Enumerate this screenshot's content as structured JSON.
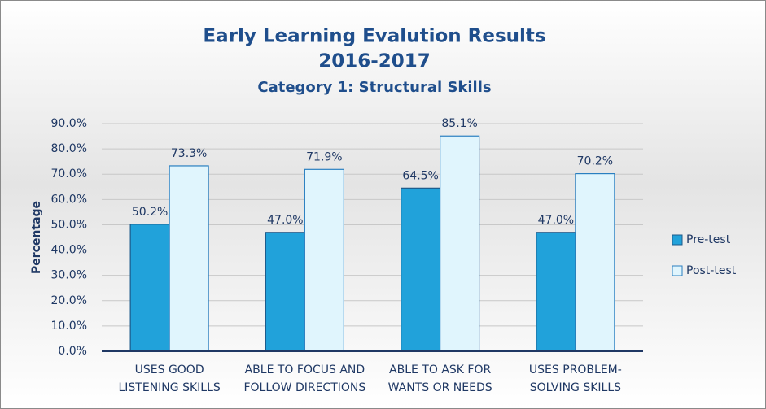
{
  "chart_data": {
    "type": "bar",
    "title": "Early Learning Evalution Results",
    "title_line2": "2016-2017",
    "subtitle": "Category 1: Structural Skills",
    "y_label": "Percentage",
    "categories": [
      "USES GOOD LISTENING SKILLS",
      "ABLE TO FOCUS AND FOLLOW DIRECTIONS",
      "ABLE TO ASK FOR WANTS OR NEEDS",
      "USES PROBLEM-SOLVING SKILLS"
    ],
    "series": [
      {
        "name": "Pre-test",
        "color": "#21a2da",
        "values": [
          50.2,
          47.0,
          64.5,
          47.0
        ],
        "value_labels": [
          "50.2%",
          "47.0%",
          "64.5%",
          "47.0%"
        ]
      },
      {
        "name": "Post-test",
        "color": "#e0f5fd",
        "values": [
          73.3,
          71.9,
          85.1,
          70.2
        ],
        "value_labels": [
          "73.3%",
          "71.9%",
          "85.1%",
          "70.2%"
        ]
      }
    ],
    "ylim": [
      0,
      90
    ],
    "yticks": [
      {
        "value": 0,
        "label": "0.0%"
      },
      {
        "value": 10,
        "label": "10.0%"
      },
      {
        "value": 20,
        "label": "20.0%"
      },
      {
        "value": 30,
        "label": "30.0%"
      },
      {
        "value": 40,
        "label": "40.0%"
      },
      {
        "value": 50,
        "label": "50.0%"
      },
      {
        "value": 60,
        "label": "60.0%"
      },
      {
        "value": 70,
        "label": "70.0%"
      },
      {
        "value": 80,
        "label": "80.0%"
      },
      {
        "value": 90,
        "label": "90.0%"
      }
    ],
    "grid": true,
    "legend": "right"
  }
}
